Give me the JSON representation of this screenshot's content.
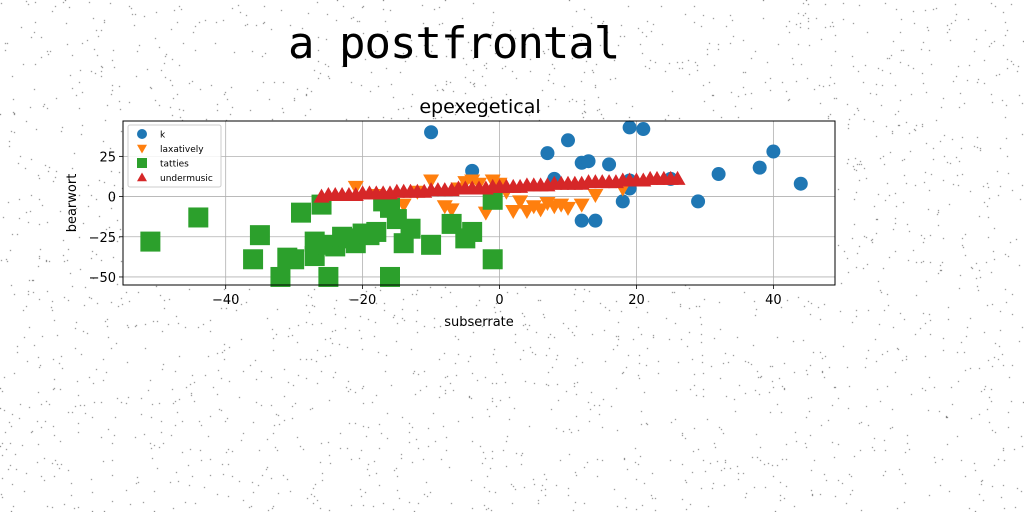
{
  "page": {
    "title": "a postfrontal"
  },
  "chart_data": {
    "type": "scatter",
    "title": "epexegetical",
    "xlabel": "subserrate",
    "ylabel": "bearwort",
    "xlim": [
      -55,
      49
    ],
    "ylim": [
      -55,
      47
    ],
    "x_ticks": [
      -40,
      -20,
      0,
      20,
      40
    ],
    "y_ticks": [
      -50,
      -25,
      0,
      25
    ],
    "grid": true,
    "legend_position": "top-left",
    "series": [
      {
        "name": "k",
        "marker": "circle",
        "color": "#1f77b4",
        "points": [
          [
            -10,
            40
          ],
          [
            -4,
            16
          ],
          [
            7,
            27
          ],
          [
            8,
            11
          ],
          [
            10,
            35
          ],
          [
            12,
            21
          ],
          [
            12,
            -15
          ],
          [
            13,
            22
          ],
          [
            14,
            -15
          ],
          [
            16,
            20
          ],
          [
            18,
            -3
          ],
          [
            19,
            5
          ],
          [
            19,
            10
          ],
          [
            19,
            43
          ],
          [
            21,
            42
          ],
          [
            25,
            11
          ],
          [
            29,
            -3
          ],
          [
            32,
            14
          ],
          [
            38,
            18
          ],
          [
            40,
            28
          ],
          [
            44,
            8
          ]
        ]
      },
      {
        "name": "laxatively",
        "marker": "triangle-down",
        "color": "#ff7f0e",
        "points": [
          [
            -21,
            6
          ],
          [
            -18,
            1
          ],
          [
            -14,
            -5
          ],
          [
            -12,
            3
          ],
          [
            -10,
            10
          ],
          [
            -8,
            -6
          ],
          [
            -7,
            -8
          ],
          [
            -6,
            5
          ],
          [
            -5,
            9
          ],
          [
            -4,
            10
          ],
          [
            -3,
            8
          ],
          [
            -2,
            -10
          ],
          [
            -1,
            10
          ],
          [
            0,
            8
          ],
          [
            1,
            3
          ],
          [
            2,
            -9
          ],
          [
            3,
            -3
          ],
          [
            4,
            -9
          ],
          [
            5,
            -6
          ],
          [
            6,
            -8
          ],
          [
            7,
            -4
          ],
          [
            8,
            -6
          ],
          [
            9,
            -5
          ],
          [
            10,
            -7
          ],
          [
            12,
            -5
          ],
          [
            14,
            1
          ],
          [
            18,
            5
          ]
        ]
      },
      {
        "name": "tatties",
        "marker": "square",
        "color": "#2ca02c",
        "points": [
          [
            -51,
            -28
          ],
          [
            -44,
            -13
          ],
          [
            -36,
            -39
          ],
          [
            -35,
            -24
          ],
          [
            -32,
            -50
          ],
          [
            -31,
            -38
          ],
          [
            -30,
            -39
          ],
          [
            -29,
            -10
          ],
          [
            -27,
            -37
          ],
          [
            -27,
            -28
          ],
          [
            -26,
            -5
          ],
          [
            -25,
            -30
          ],
          [
            -25,
            -50
          ],
          [
            -24,
            -31
          ],
          [
            -23,
            -25
          ],
          [
            -22,
            -26
          ],
          [
            -21,
            -29
          ],
          [
            -20,
            -23
          ],
          [
            -19,
            -24
          ],
          [
            -18,
            -22
          ],
          [
            -17,
            -3
          ],
          [
            -16,
            -7
          ],
          [
            -16,
            -50
          ],
          [
            -15,
            -14
          ],
          [
            -14,
            -29
          ],
          [
            -13,
            -20
          ],
          [
            -10,
            -30
          ],
          [
            -7,
            -17
          ],
          [
            -5,
            -26
          ],
          [
            -4,
            -22
          ],
          [
            -1,
            -39
          ],
          [
            -1,
            -2
          ]
        ]
      },
      {
        "name": "undermusic",
        "marker": "triangle-up",
        "color": "#d62728",
        "points": [
          [
            -26,
            0
          ],
          [
            -25,
            1
          ],
          [
            -24,
            1
          ],
          [
            -23,
            1
          ],
          [
            -22,
            1
          ],
          [
            -21,
            1
          ],
          [
            -20,
            2
          ],
          [
            -19,
            2
          ],
          [
            -18,
            2
          ],
          [
            -17,
            2
          ],
          [
            -16,
            2
          ],
          [
            -15,
            3
          ],
          [
            -14,
            3
          ],
          [
            -13,
            3
          ],
          [
            -12,
            3
          ],
          [
            -11,
            3
          ],
          [
            -10,
            4
          ],
          [
            -9,
            4
          ],
          [
            -8,
            4
          ],
          [
            -7,
            4
          ],
          [
            -6,
            5
          ],
          [
            -5,
            5
          ],
          [
            -4,
            5
          ],
          [
            -3,
            5
          ],
          [
            -2,
            5
          ],
          [
            -1,
            6
          ],
          [
            0,
            6
          ],
          [
            1,
            6
          ],
          [
            2,
            6
          ],
          [
            3,
            6
          ],
          [
            4,
            7
          ],
          [
            5,
            7
          ],
          [
            6,
            7
          ],
          [
            7,
            7
          ],
          [
            8,
            8
          ],
          [
            9,
            8
          ],
          [
            10,
            8
          ],
          [
            11,
            8
          ],
          [
            12,
            8
          ],
          [
            13,
            9
          ],
          [
            14,
            9
          ],
          [
            15,
            9
          ],
          [
            16,
            9
          ],
          [
            17,
            9
          ],
          [
            18,
            10
          ],
          [
            19,
            10
          ],
          [
            20,
            10
          ],
          [
            21,
            10
          ],
          [
            22,
            11
          ],
          [
            23,
            11
          ],
          [
            24,
            11
          ],
          [
            25,
            11
          ],
          [
            26,
            11
          ]
        ]
      }
    ]
  }
}
